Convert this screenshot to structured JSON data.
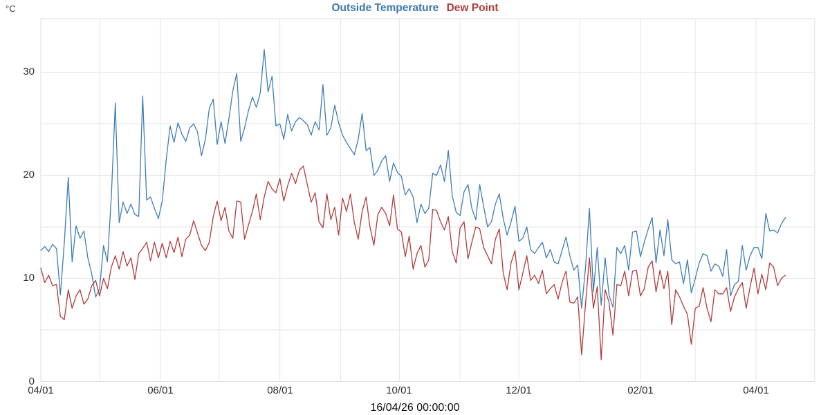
{
  "header": {
    "title_series1": "Outside Temperature",
    "title_series2": "Dew Point",
    "y_unit": "°C"
  },
  "footer": {
    "timestamp": "16/04/26 00:00:00"
  },
  "colors": {
    "temperature_line": "#3e7cb6",
    "dew_point_line": "#b23a3a",
    "gridline": "#e6e6e6",
    "plot_border": "#dedede",
    "tick_text": "#2d2d2d"
  },
  "chart_data": {
    "type": "line",
    "title": "Outside Temperature Dew Point",
    "xlabel": "",
    "ylabel": "°C",
    "x_start_date": "2025-04-01",
    "x_step_days": 2,
    "x_axis_total_days": 395,
    "data_total_days": 380,
    "ylim": [
      0,
      35.2
    ],
    "grid": true,
    "legend_position": "top-center-title",
    "y_tick_values": [
      0,
      10,
      20,
      30
    ],
    "y_gridline_step": 5,
    "x_gridline_month_start_days": [
      30,
      61,
      91,
      122,
      153,
      183,
      214,
      244,
      275,
      306,
      334,
      365
    ],
    "x_tick_days": [
      0,
      61,
      122,
      183,
      244,
      306,
      365
    ],
    "x_tick_labels": [
      "04/01",
      "06/01",
      "08/01",
      "10/01",
      "12/01",
      "02/01",
      "04/01"
    ],
    "series": [
      {
        "name": "Outside Temperature",
        "color": "#3e7cb6",
        "values": [
          12.7,
          13.1,
          12.6,
          13.3,
          12.9,
          8.4,
          13.5,
          19.8,
          11.6,
          15.1,
          13.9,
          14.6,
          12.0,
          10.4,
          8.2,
          9.0,
          13.2,
          11.6,
          18.0,
          27.0,
          15.4,
          17.4,
          16.3,
          17.2,
          16.2,
          16.0,
          27.7,
          17.6,
          17.9,
          16.8,
          15.8,
          17.5,
          21.5,
          24.8,
          23.2,
          25.1,
          24.0,
          23.3,
          24.6,
          25.0,
          24.2,
          21.9,
          23.5,
          26.5,
          27.4,
          23.0,
          25.2,
          23.1,
          25.5,
          28.2,
          29.9,
          23.3,
          24.6,
          26.3,
          27.6,
          26.6,
          28.0,
          32.2,
          28.1,
          29.6,
          24.8,
          25.0,
          23.5,
          25.9,
          24.3,
          25.2,
          25.6,
          25.3,
          24.9,
          23.9,
          25.2,
          24.4,
          28.8,
          23.9,
          24.6,
          26.8,
          25.1,
          23.9,
          23.2,
          22.6,
          22.0,
          23.5,
          26.0,
          22.4,
          22.7,
          20.0,
          20.5,
          21.4,
          21.9,
          19.4,
          21.2,
          20.3,
          19.9,
          18.1,
          18.7,
          17.9,
          15.4,
          17.2,
          16.3,
          16.8,
          20.2,
          20.0,
          21.0,
          19.4,
          22.4,
          18.0,
          16.4,
          16.1,
          18.4,
          19.1,
          16.8,
          15.7,
          19.1,
          17.0,
          15.0,
          15.5,
          17.2,
          18.2,
          15.8,
          14.2,
          15.5,
          17.0,
          13.6,
          13.9,
          15.0,
          12.8,
          12.4,
          13.0,
          13.5,
          12.0,
          12.8,
          11.6,
          11.4,
          12.7,
          14.0,
          12.2,
          10.8,
          11.3,
          7.1,
          11.0,
          16.8,
          8.7,
          13.0,
          7.4,
          12.0,
          8.4,
          7.2,
          13.0,
          12.4,
          13.2,
          10.8,
          14.5,
          14.6,
          12.1,
          13.5,
          14.8,
          15.9,
          11.5,
          14.7,
          12.2,
          15.7,
          11.8,
          11.4,
          11.6,
          9.5,
          11.8,
          8.6,
          10.0,
          11.5,
          12.4,
          12.2,
          10.7,
          11.4,
          11.2,
          10.2,
          12.8,
          8.3,
          9.4,
          9.7,
          13.2,
          10.8,
          12.2,
          13.0,
          13.0,
          11.9,
          16.3,
          14.6,
          14.7,
          14.4,
          15.3,
          15.9
        ]
      },
      {
        "name": "Dew Point",
        "color": "#b23a3a",
        "values": [
          11.0,
          9.6,
          10.3,
          9.3,
          9.4,
          6.3,
          6.0,
          8.9,
          7.1,
          8.3,
          8.9,
          7.5,
          8.0,
          9.3,
          9.8,
          8.3,
          10.0,
          9.0,
          11.1,
          12.2,
          10.9,
          12.6,
          11.2,
          12.0,
          9.9,
          12.4,
          12.9,
          13.5,
          11.7,
          13.5,
          12.0,
          13.4,
          12.0,
          13.6,
          12.5,
          14.0,
          12.1,
          13.8,
          14.2,
          15.6,
          14.4,
          13.2,
          12.7,
          13.5,
          16.0,
          17.5,
          15.6,
          16.9,
          14.6,
          13.9,
          17.5,
          17.4,
          13.8,
          15.2,
          16.5,
          18.2,
          15.7,
          17.9,
          19.4,
          18.7,
          18.3,
          19.7,
          17.5,
          19.0,
          20.2,
          19.2,
          20.5,
          20.9,
          19.1,
          17.4,
          18.3,
          15.5,
          14.9,
          18.2,
          15.7,
          16.9,
          14.2,
          17.8,
          16.5,
          18.2,
          15.4,
          13.8,
          16.5,
          17.9,
          15.0,
          13.2,
          16.2,
          16.9,
          16.3,
          15.1,
          18.1,
          14.8,
          14.5,
          12.1,
          14.1,
          10.9,
          12.4,
          13.2,
          11.1,
          11.8,
          16.7,
          16.6,
          15.5,
          14.7,
          16.0,
          12.6,
          11.5,
          14.9,
          15.5,
          11.9,
          13.5,
          15.0,
          14.8,
          13.0,
          12.2,
          11.4,
          13.8,
          14.8,
          10.5,
          8.9,
          11.5,
          12.7,
          8.9,
          10.5,
          12.2,
          9.8,
          10.3,
          9.5,
          10.8,
          8.5,
          9.0,
          9.4,
          8.0,
          9.6,
          10.7,
          7.7,
          7.6,
          8.2,
          2.6,
          7.5,
          12.0,
          7.1,
          9.2,
          2.1,
          8.9,
          7.7,
          4.5,
          9.4,
          9.3,
          10.7,
          8.3,
          10.7,
          10.8,
          8.3,
          9.0,
          11.1,
          11.7,
          8.7,
          10.8,
          9.0,
          10.7,
          5.5,
          8.9,
          8.2,
          7.3,
          6.5,
          3.6,
          7.1,
          7.3,
          9.1,
          7.1,
          5.8,
          8.9,
          8.5,
          8.5,
          9.1,
          6.8,
          8.2,
          9.0,
          9.6,
          7.1,
          9.2,
          11.0,
          8.5,
          10.4,
          8.9,
          11.5,
          11.1,
          9.3,
          10.0,
          10.3
        ]
      }
    ]
  }
}
